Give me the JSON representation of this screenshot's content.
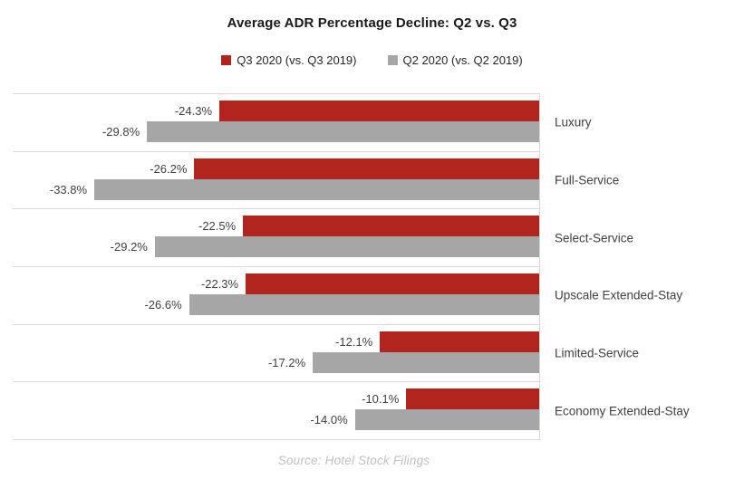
{
  "title": "Average ADR Percentage Decline: Q2 vs. Q3",
  "legend": [
    {
      "label": "Q3 2020 (vs. Q3 2019)",
      "color": "#b2241e"
    },
    {
      "label": "Q2 2020 (vs. Q2 2019)",
      "color": "#a6a6a6"
    }
  ],
  "source": "Source: Hotel Stock Filings",
  "colors": {
    "q3_bar": "#b2241e",
    "q2_bar": "#a6a6a6",
    "gridline": "#d9d9d9",
    "label_text": "#404040",
    "source_text": "#bfbfbf"
  },
  "chart_data": {
    "type": "bar",
    "orientation": "horizontal",
    "title": "Average ADR Percentage Decline: Q2 vs. Q3",
    "categories": [
      "Luxury",
      "Full-Service",
      "Select-Service",
      "Upscale Extended-Stay",
      "Limited-Service",
      "Economy Extended-Stay"
    ],
    "series": [
      {
        "name": "Q3 2020 (vs. Q3 2019)",
        "color": "#b2241e",
        "values": [
          -24.3,
          -26.2,
          -22.5,
          -22.3,
          -12.1,
          -10.1
        ]
      },
      {
        "name": "Q2 2020 (vs. Q2 2019)",
        "color": "#a6a6a6",
        "values": [
          -29.8,
          -33.8,
          -29.2,
          -26.6,
          -17.2,
          -14.0
        ]
      }
    ],
    "data_labels": [
      [
        "-24.3%",
        "-26.2%",
        "-22.5%",
        "-22.3%",
        "-12.1%",
        "-10.1%"
      ],
      [
        "-29.8%",
        "-33.8%",
        "-29.2%",
        "-26.6%",
        "-17.2%",
        "-14.0%"
      ]
    ],
    "xlim": [
      -40,
      0
    ],
    "grid": true,
    "legend_position": "top",
    "annotations": [
      "Source: Hotel Stock Filings"
    ]
  }
}
